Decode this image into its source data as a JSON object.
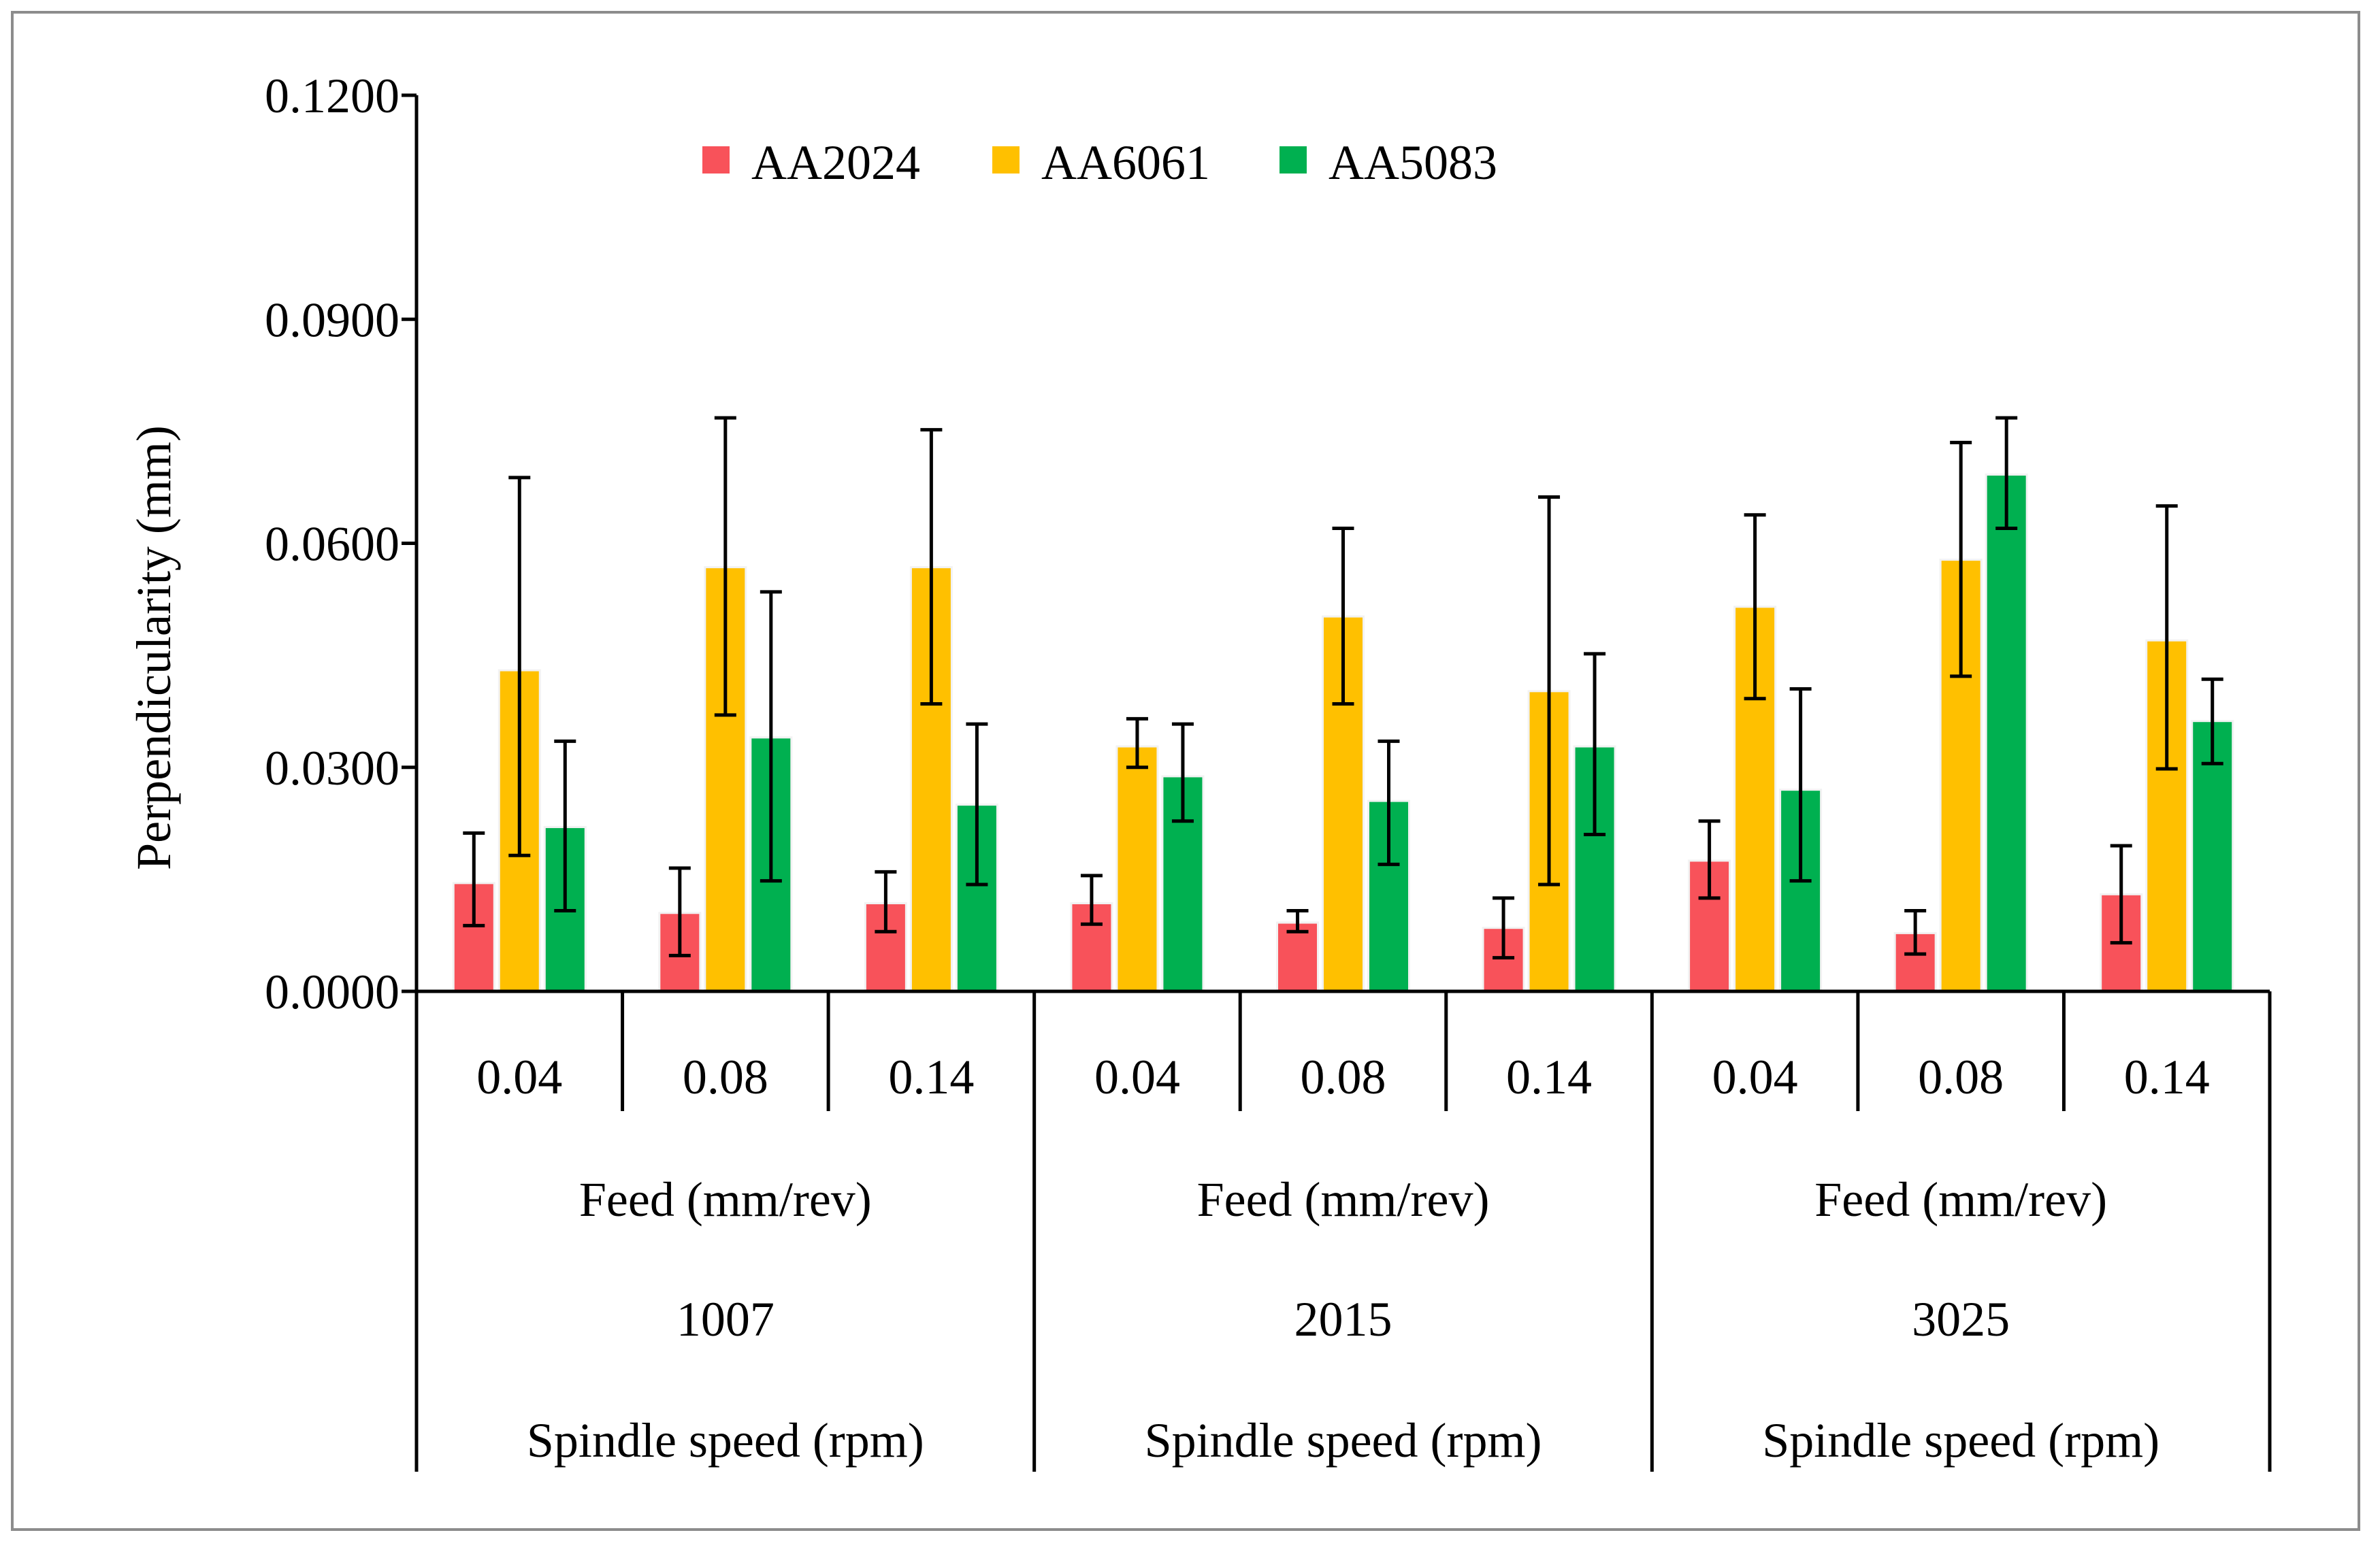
{
  "chart_data": {
    "type": "bar",
    "title": "",
    "ylabel": "Perpendicularity (mm)",
    "ylim": [
      0,
      0.12
    ],
    "yticks": [
      "0.0000",
      "0.0300",
      "0.0600",
      "0.0900",
      "0.1200"
    ],
    "ytick_values": [
      0,
      0.03,
      0.06,
      0.09,
      0.12
    ],
    "grid": false,
    "legend_position": "top",
    "categories": [
      "0.04",
      "0.08",
      "0.14",
      "0.04",
      "0.08",
      "0.14",
      "0.04",
      "0.08",
      "0.14"
    ],
    "feed_label": "Feed (mm/rev)",
    "spindle_label": "Spindle speed (rpm)",
    "groups": [
      "1007",
      "2015",
      "3025"
    ],
    "series": [
      {
        "name": "AA2024",
        "color": "#f8525a",
        "values": [
          0.0145,
          0.0105,
          0.0118,
          0.0118,
          0.0092,
          0.0085,
          0.0175,
          0.0078,
          0.013
        ],
        "err_low": [
          0.0088,
          0.0048,
          0.008,
          0.009,
          0.008,
          0.0045,
          0.0125,
          0.005,
          0.0065
        ],
        "err_high": [
          0.0212,
          0.0165,
          0.016,
          0.0155,
          0.0108,
          0.0125,
          0.0228,
          0.0108,
          0.0195
        ]
      },
      {
        "name": "AA6061",
        "color": "#ffc000",
        "values": [
          0.043,
          0.0568,
          0.0568,
          0.0328,
          0.0502,
          0.0402,
          0.0515,
          0.0578,
          0.047
        ],
        "err_low": [
          0.0182,
          0.037,
          0.0385,
          0.03,
          0.0385,
          0.0143,
          0.0392,
          0.0422,
          0.0298
        ],
        "err_high": [
          0.0688,
          0.0768,
          0.0752,
          0.0365,
          0.062,
          0.0662,
          0.0638,
          0.0735,
          0.065
        ]
      },
      {
        "name": "AA5083",
        "color": "#00b050",
        "values": [
          0.022,
          0.034,
          0.025,
          0.0288,
          0.0255,
          0.0328,
          0.027,
          0.0692,
          0.0362
        ],
        "err_low": [
          0.0108,
          0.0148,
          0.0143,
          0.0228,
          0.017,
          0.021,
          0.0148,
          0.062,
          0.0305
        ],
        "err_high": [
          0.0335,
          0.0535,
          0.0358,
          0.0358,
          0.0335,
          0.0452,
          0.0405,
          0.0768,
          0.0418
        ]
      }
    ]
  }
}
